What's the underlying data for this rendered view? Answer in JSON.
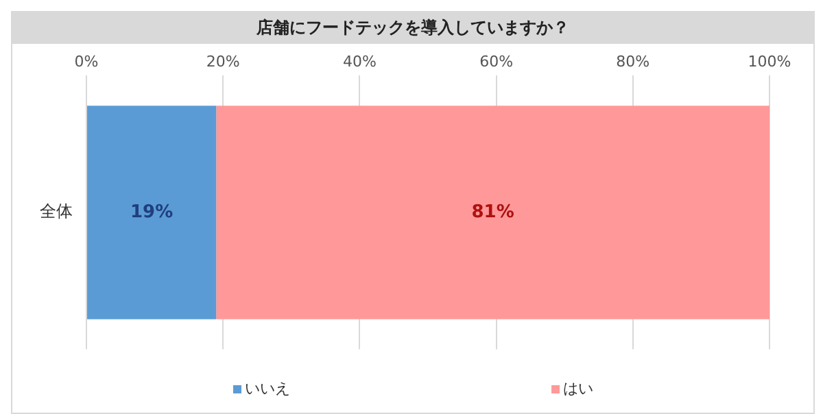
{
  "chart_data": {
    "type": "bar",
    "title": "店舗にフードテックを導入していますか？",
    "orientation": "horizontal",
    "stacked": true,
    "categories": [
      "全体"
    ],
    "series": [
      {
        "name": "いいえ",
        "color": "#5b9bd5",
        "values": [
          19
        ],
        "value_labels": [
          "19%"
        ]
      },
      {
        "name": "はい",
        "color": "#ff9999",
        "values": [
          81
        ],
        "value_labels": [
          "81%"
        ]
      }
    ],
    "xlim": [
      0,
      100
    ],
    "xticks": [
      {
        "value": 0,
        "label": "0%"
      },
      {
        "value": 20,
        "label": "20%"
      },
      {
        "value": 40,
        "label": "40%"
      },
      {
        "value": 60,
        "label": "60%"
      },
      {
        "value": 80,
        "label": "80%"
      },
      {
        "value": 100,
        "label": "100%"
      }
    ],
    "grid": "x",
    "legend": "bottom"
  }
}
